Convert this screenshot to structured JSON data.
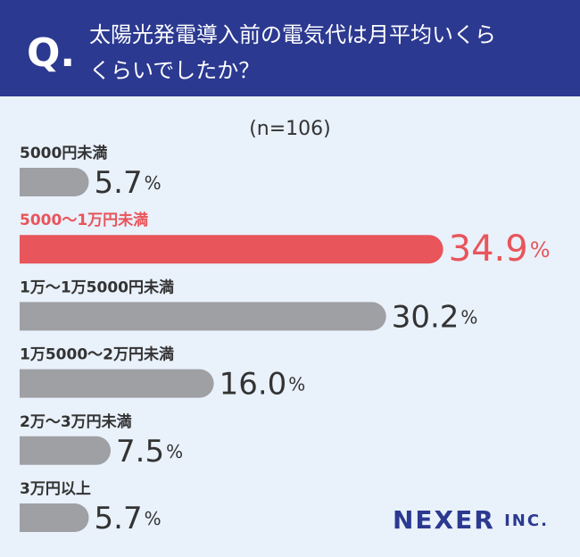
{
  "chart_data": {
    "type": "barh",
    "question_marker": "Q.",
    "title_lines": [
      "太陽光発電導入前の電気代は月平均いくら",
      "くらいでしたか？"
    ],
    "subtitle": "(n=106)",
    "categories": [
      "5000円未満",
      "5000〜1万円未満",
      "1万〜1万5000円未満",
      "1万5000〜2万円未満",
      "2万〜3万円未満",
      "3万円以上"
    ],
    "values": [
      5.7,
      34.9,
      30.2,
      16.0,
      7.5,
      5.7
    ],
    "value_labels": [
      "5.7%",
      "34.9%",
      "30.2%",
      "16.0%",
      "7.5%",
      "5.7%"
    ],
    "colors": [
      "#9fa0a4",
      "#e8555a",
      "#9fa0a4",
      "#9fa0a4",
      "#9fa0a4",
      "#9fa0a4"
    ],
    "text_colors": [
      "#333333",
      "#e8555a",
      "#333333",
      "#333333",
      "#333333",
      "#333333"
    ],
    "xlim": [
      0,
      40
    ],
    "brand": "NEXER INC."
  }
}
